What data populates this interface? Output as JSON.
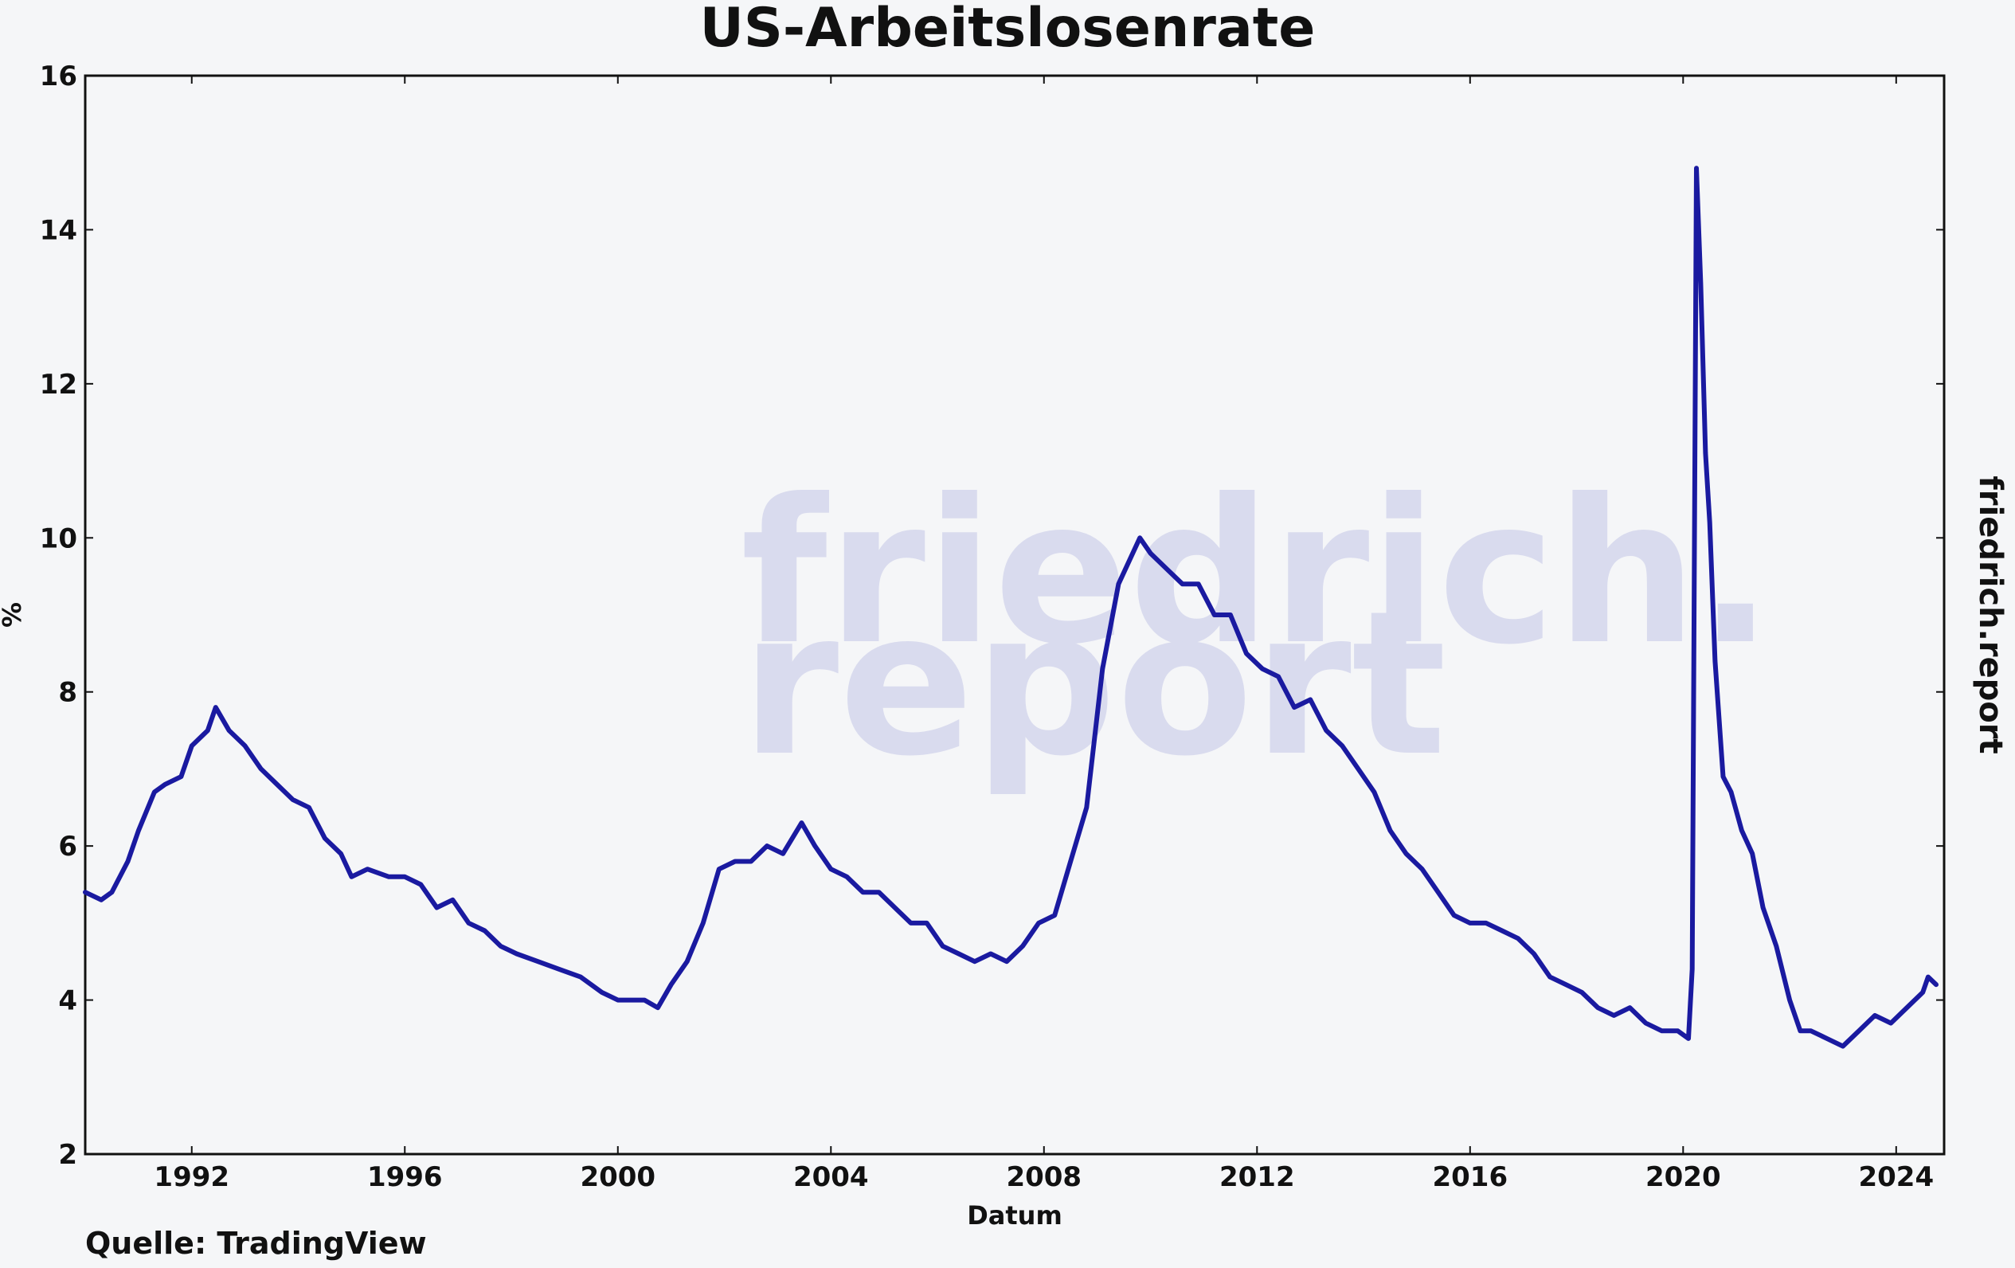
{
  "chart_data": {
    "type": "line",
    "title": "US-Arbeitslosenrate",
    "xlabel": "Datum",
    "ylabel": "%",
    "xlim": [
      1990.0,
      2024.9
    ],
    "ylim": [
      2,
      16
    ],
    "x_ticks": [
      "1992",
      "1996",
      "2000",
      "2004",
      "2008",
      "2012",
      "2016",
      "2020",
      "2024"
    ],
    "y_ticks": [
      "2",
      "4",
      "6",
      "8",
      "10",
      "12",
      "14",
      "16"
    ],
    "grid": false,
    "line_color": "#1a1aa0",
    "series": [
      {
        "x": [
          1990.0,
          1990.3,
          1990.5,
          1990.8,
          1991.0,
          1991.3,
          1991.5,
          1991.8,
          1992.0,
          1992.3,
          1992.45,
          1992.7,
          1993.0,
          1993.3,
          1993.6,
          1993.9,
          1994.2,
          1994.5,
          1994.8,
          1995.0,
          1995.3,
          1995.7,
          1996.0,
          1996.3,
          1996.6,
          1996.9,
          1997.2,
          1997.5,
          1997.8,
          1998.1,
          1998.5,
          1998.9,
          1999.3,
          1999.7,
          2000.0,
          2000.25,
          2000.5,
          2000.75,
          2001.0,
          2001.3,
          2001.6,
          2001.9,
          2002.2,
          2002.5,
          2002.8,
          2003.1,
          2003.45,
          2003.7,
          2004.0,
          2004.3,
          2004.6,
          2004.9,
          2005.2,
          2005.5,
          2005.8,
          2006.1,
          2006.4,
          2006.7,
          2007.0,
          2007.3,
          2007.6,
          2007.9,
          2008.2,
          2008.5,
          2008.8,
          2009.1,
          2009.4,
          2009.6,
          2009.8,
          2010.0,
          2010.3,
          2010.6,
          2010.9,
          2011.2,
          2011.5,
          2011.8,
          2012.1,
          2012.4,
          2012.7,
          2013.0,
          2013.3,
          2013.6,
          2013.9,
          2014.2,
          2014.5,
          2014.8,
          2015.1,
          2015.4,
          2015.7,
          2016.0,
          2016.3,
          2016.6,
          2016.9,
          2017.2,
          2017.5,
          2017.8,
          2018.1,
          2018.4,
          2018.7,
          2019.0,
          2019.3,
          2019.6,
          2019.9,
          2020.1,
          2020.17,
          2020.25,
          2020.33,
          2020.42,
          2020.5,
          2020.6,
          2020.75,
          2020.9,
          2021.1,
          2021.3,
          2021.5,
          2021.75,
          2022.0,
          2022.2,
          2022.4,
          2022.7,
          2023.0,
          2023.3,
          2023.6,
          2023.9,
          2024.2,
          2024.5,
          2024.6,
          2024.75
        ],
        "values": [
          5.4,
          5.3,
          5.4,
          5.8,
          6.2,
          6.7,
          6.8,
          6.9,
          7.3,
          7.5,
          7.8,
          7.5,
          7.3,
          7.0,
          6.8,
          6.6,
          6.5,
          6.1,
          5.9,
          5.6,
          5.7,
          5.6,
          5.6,
          5.5,
          5.2,
          5.3,
          5.0,
          4.9,
          4.7,
          4.6,
          4.5,
          4.4,
          4.3,
          4.1,
          4.0,
          4.0,
          4.0,
          3.9,
          4.2,
          4.5,
          5.0,
          5.7,
          5.8,
          5.8,
          6.0,
          5.9,
          6.3,
          6.0,
          5.7,
          5.6,
          5.4,
          5.4,
          5.2,
          5.0,
          5.0,
          4.7,
          4.6,
          4.5,
          4.6,
          4.5,
          4.7,
          5.0,
          5.1,
          5.8,
          6.5,
          8.3,
          9.4,
          9.7,
          10.0,
          9.8,
          9.6,
          9.4,
          9.4,
          9.0,
          9.0,
          8.5,
          8.3,
          8.2,
          7.8,
          7.9,
          7.5,
          7.3,
          7.0,
          6.7,
          6.2,
          5.9,
          5.7,
          5.4,
          5.1,
          5.0,
          5.0,
          4.9,
          4.8,
          4.6,
          4.3,
          4.2,
          4.1,
          3.9,
          3.8,
          3.9,
          3.7,
          3.6,
          3.6,
          3.5,
          4.4,
          14.8,
          13.3,
          11.1,
          10.2,
          8.4,
          6.9,
          6.7,
          6.2,
          5.9,
          5.2,
          4.7,
          4.0,
          3.6,
          3.6,
          3.5,
          3.4,
          3.6,
          3.8,
          3.7,
          3.9,
          4.1,
          4.3,
          4.2
        ]
      }
    ]
  },
  "source": "Quelle: TradingView",
  "brand": "friedrich.report",
  "watermark": [
    "friedrich.",
    "report"
  ]
}
